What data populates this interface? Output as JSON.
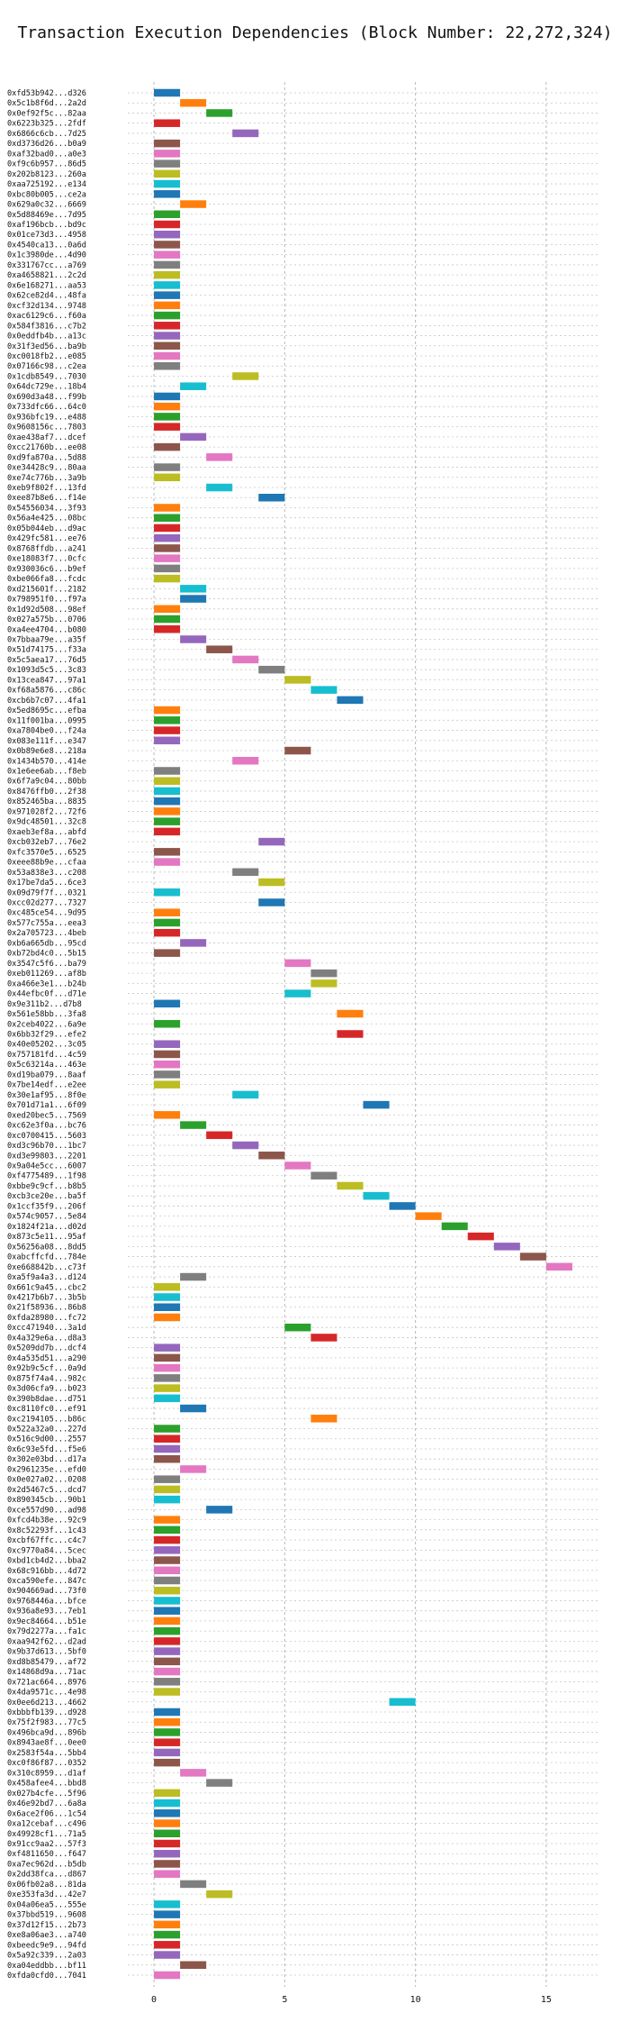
{
  "chart_data": {
    "type": "gantt",
    "title": "Transaction Execution Dependencies (Block Number: 22,272,324)",
    "xlabel": "",
    "ylabel": "",
    "xlim": [
      -1,
      17
    ],
    "x_ticks": [
      0,
      5,
      10,
      15
    ],
    "grid": true,
    "palette": [
      "#1f77b4",
      "#ff7f0e",
      "#2ca02c",
      "#d62728",
      "#9467bd",
      "#8c564b",
      "#e377c2",
      "#7f7f7f",
      "#bcbd22",
      "#17becf"
    ],
    "tasks": [
      {
        "label": "0xfd53b942...d326",
        "start": 0,
        "end": 1
      },
      {
        "label": "0x5c1b8f6d...2a2d",
        "start": 1,
        "end": 2
      },
      {
        "label": "0x0ef92f5c...82aa",
        "start": 2,
        "end": 3
      },
      {
        "label": "0x6223b325...2fdf",
        "start": 0,
        "end": 1
      },
      {
        "label": "0x6866c6cb...7d25",
        "start": 3,
        "end": 4
      },
      {
        "label": "0xd3736d26...b0a9",
        "start": 0,
        "end": 1
      },
      {
        "label": "0xaf32bad0...a0e3",
        "start": 0,
        "end": 1
      },
      {
        "label": "0xf9c6b957...86d5",
        "start": 0,
        "end": 1
      },
      {
        "label": "0x202b8123...260a",
        "start": 0,
        "end": 1
      },
      {
        "label": "0xaa725192...e134",
        "start": 0,
        "end": 1
      },
      {
        "label": "0xbc80b005...ce2a",
        "start": 0,
        "end": 1
      },
      {
        "label": "0x629a0c32...6669",
        "start": 1,
        "end": 2
      },
      {
        "label": "0x5d88469e...7d95",
        "start": 0,
        "end": 1
      },
      {
        "label": "0xaf196bcb...bd9c",
        "start": 0,
        "end": 1
      },
      {
        "label": "0x01ce73d3...4958",
        "start": 0,
        "end": 1
      },
      {
        "label": "0x4540ca13...0a6d",
        "start": 0,
        "end": 1
      },
      {
        "label": "0x1c3980de...4d90",
        "start": 0,
        "end": 1
      },
      {
        "label": "0x331767cc...a769",
        "start": 0,
        "end": 1
      },
      {
        "label": "0xa4658821...2c2d",
        "start": 0,
        "end": 1
      },
      {
        "label": "0x6e168271...aa53",
        "start": 0,
        "end": 1
      },
      {
        "label": "0x62ce82d4...48fa",
        "start": 0,
        "end": 1
      },
      {
        "label": "0xcf32d134...9748",
        "start": 0,
        "end": 1
      },
      {
        "label": "0xac6129c6...f60a",
        "start": 0,
        "end": 1
      },
      {
        "label": "0x584f3816...c7b2",
        "start": 0,
        "end": 1
      },
      {
        "label": "0x0eddfb4b...a13c",
        "start": 0,
        "end": 1
      },
      {
        "label": "0x31f3ed56...ba9b",
        "start": 0,
        "end": 1
      },
      {
        "label": "0xc0018fb2...e085",
        "start": 0,
        "end": 1
      },
      {
        "label": "0x07166c98...c2ea",
        "start": 0,
        "end": 1
      },
      {
        "label": "0x1cdb8549...7030",
        "start": 3,
        "end": 4
      },
      {
        "label": "0x64dc729e...18b4",
        "start": 1,
        "end": 2
      },
      {
        "label": "0x690d3a48...f99b",
        "start": 0,
        "end": 1
      },
      {
        "label": "0x733dfc66...64c0",
        "start": 0,
        "end": 1
      },
      {
        "label": "0x936bfc19...e488",
        "start": 0,
        "end": 1
      },
      {
        "label": "0x9608156c...7803",
        "start": 0,
        "end": 1
      },
      {
        "label": "0xae438af7...dcef",
        "start": 1,
        "end": 2
      },
      {
        "label": "0xcc21760b...ee08",
        "start": 0,
        "end": 1
      },
      {
        "label": "0xd9fa870a...5d88",
        "start": 2,
        "end": 3
      },
      {
        "label": "0xe34428c9...80aa",
        "start": 0,
        "end": 1
      },
      {
        "label": "0xe74c776b...3a9b",
        "start": 0,
        "end": 1
      },
      {
        "label": "0xeb9f802f...13fd",
        "start": 2,
        "end": 3
      },
      {
        "label": "0xee87b8e6...f14e",
        "start": 4,
        "end": 5
      },
      {
        "label": "0x54556034...3f93",
        "start": 0,
        "end": 1
      },
      {
        "label": "0x56a4e425...08bc",
        "start": 0,
        "end": 1
      },
      {
        "label": "0x05b044eb...d9ac",
        "start": 0,
        "end": 1
      },
      {
        "label": "0x429fc581...ee76",
        "start": 0,
        "end": 1
      },
      {
        "label": "0x8768ffdb...a241",
        "start": 0,
        "end": 1
      },
      {
        "label": "0xe18083f7...0cfc",
        "start": 0,
        "end": 1
      },
      {
        "label": "0x930036c6...b9ef",
        "start": 0,
        "end": 1
      },
      {
        "label": "0xbe066fa8...fcdc",
        "start": 0,
        "end": 1
      },
      {
        "label": "0xd215601f...2182",
        "start": 1,
        "end": 2
      },
      {
        "label": "0x798951f0...f97a",
        "start": 1,
        "end": 2
      },
      {
        "label": "0x1d92d508...98ef",
        "start": 0,
        "end": 1
      },
      {
        "label": "0x027a575b...0706",
        "start": 0,
        "end": 1
      },
      {
        "label": "0xa4ee4704...b080",
        "start": 0,
        "end": 1
      },
      {
        "label": "0x7bbaa79e...a35f",
        "start": 1,
        "end": 2
      },
      {
        "label": "0x51d74175...f33a",
        "start": 2,
        "end": 3
      },
      {
        "label": "0x5c5aea17...76d5",
        "start": 3,
        "end": 4
      },
      {
        "label": "0x1093d5c5...3c83",
        "start": 4,
        "end": 5
      },
      {
        "label": "0x13cea847...97a1",
        "start": 5,
        "end": 6
      },
      {
        "label": "0xf68a5876...c86c",
        "start": 6,
        "end": 7
      },
      {
        "label": "0xcb6b7c07...4fa1",
        "start": 7,
        "end": 8
      },
      {
        "label": "0x5ed8695c...efba",
        "start": 0,
        "end": 1
      },
      {
        "label": "0x11f001ba...0995",
        "start": 0,
        "end": 1
      },
      {
        "label": "0xa7804be0...f24a",
        "start": 0,
        "end": 1
      },
      {
        "label": "0x083e111f...e347",
        "start": 0,
        "end": 1
      },
      {
        "label": "0x0b89e6e8...218a",
        "start": 5,
        "end": 6
      },
      {
        "label": "0x1434b570...414e",
        "start": 3,
        "end": 4
      },
      {
        "label": "0x1e6ee6ab...f8eb",
        "start": 0,
        "end": 1
      },
      {
        "label": "0x6f7a9c04...80bb",
        "start": 0,
        "end": 1
      },
      {
        "label": "0x8476ffb0...2f38",
        "start": 0,
        "end": 1
      },
      {
        "label": "0x852465ba...8835",
        "start": 0,
        "end": 1
      },
      {
        "label": "0x971028f2...72f6",
        "start": 0,
        "end": 1
      },
      {
        "label": "0x9dc48501...32c8",
        "start": 0,
        "end": 1
      },
      {
        "label": "0xaeb3ef8a...abfd",
        "start": 0,
        "end": 1
      },
      {
        "label": "0xcb032eb7...76e2",
        "start": 4,
        "end": 5
      },
      {
        "label": "0xfc3570e5...6525",
        "start": 0,
        "end": 1
      },
      {
        "label": "0xeee88b9e...cfaa",
        "start": 0,
        "end": 1
      },
      {
        "label": "0x53a838e3...c208",
        "start": 3,
        "end": 4
      },
      {
        "label": "0x17be7da5...6ce3",
        "start": 4,
        "end": 5
      },
      {
        "label": "0x09d79f7f...0321",
        "start": 0,
        "end": 1
      },
      {
        "label": "0xcc02d277...7327",
        "start": 4,
        "end": 5
      },
      {
        "label": "0xc485ce54...9d95",
        "start": 0,
        "end": 1
      },
      {
        "label": "0x577c755a...eea3",
        "start": 0,
        "end": 1
      },
      {
        "label": "0x2a705723...4beb",
        "start": 0,
        "end": 1
      },
      {
        "label": "0xb6a665db...95cd",
        "start": 1,
        "end": 2
      },
      {
        "label": "0xb72bd4c0...5b15",
        "start": 0,
        "end": 1
      },
      {
        "label": "0x3547c5f6...ba79",
        "start": 5,
        "end": 6
      },
      {
        "label": "0xeb011269...af8b",
        "start": 6,
        "end": 7
      },
      {
        "label": "0xa466e3e1...b24b",
        "start": 6,
        "end": 7
      },
      {
        "label": "0x44efbc0f...d71e",
        "start": 5,
        "end": 6
      },
      {
        "label": "0x9e311b2...d7b8",
        "start": 0,
        "end": 1
      },
      {
        "label": "0x561e58bb...3fa8",
        "start": 7,
        "end": 8
      },
      {
        "label": "0x2ceb4022...6a9e",
        "start": 0,
        "end": 1
      },
      {
        "label": "0x6bb32f29...efe2",
        "start": 7,
        "end": 8
      },
      {
        "label": "0x40e05202...3c05",
        "start": 0,
        "end": 1
      },
      {
        "label": "0x757181fd...4c59",
        "start": 0,
        "end": 1
      },
      {
        "label": "0x5c63214a...463e",
        "start": 0,
        "end": 1
      },
      {
        "label": "0xd19ba079...8aaf",
        "start": 0,
        "end": 1
      },
      {
        "label": "0x7be14edf...e2ee",
        "start": 0,
        "end": 1
      },
      {
        "label": "0x30e1af95...8f0e",
        "start": 3,
        "end": 4
      },
      {
        "label": "0x701d71a1...6f09",
        "start": 8,
        "end": 9
      },
      {
        "label": "0xed20bec5...7569",
        "start": 0,
        "end": 1
      },
      {
        "label": "0xc62e3f0a...bc76",
        "start": 1,
        "end": 2
      },
      {
        "label": "0xc0700415...5603",
        "start": 2,
        "end": 3
      },
      {
        "label": "0xd3c96b70...1bc7",
        "start": 3,
        "end": 4
      },
      {
        "label": "0xd3e99803...2201",
        "start": 4,
        "end": 5
      },
      {
        "label": "0x9a04e5cc...6007",
        "start": 5,
        "end": 6
      },
      {
        "label": "0xf4775489...1f98",
        "start": 6,
        "end": 7
      },
      {
        "label": "0xbbe9c9cf...b8b5",
        "start": 7,
        "end": 8
      },
      {
        "label": "0xcb3ce20e...ba5f",
        "start": 8,
        "end": 9
      },
      {
        "label": "0x1ccf35f9...206f",
        "start": 9,
        "end": 10
      },
      {
        "label": "0x574c9057...5e84",
        "start": 10,
        "end": 11
      },
      {
        "label": "0x1824f21a...d02d",
        "start": 11,
        "end": 12
      },
      {
        "label": "0x873c5e11...95af",
        "start": 12,
        "end": 13
      },
      {
        "label": "0x56256a08...8dd5",
        "start": 13,
        "end": 14
      },
      {
        "label": "0xabcffcfd...784e",
        "start": 14,
        "end": 15
      },
      {
        "label": "0xe668842b...c73f",
        "start": 15,
        "end": 16
      },
      {
        "label": "0xa5f9a4a3...d124",
        "start": 1,
        "end": 2
      },
      {
        "label": "0x661c9a45...cbc2",
        "start": 0,
        "end": 1
      },
      {
        "label": "0x4217b6b7...3b5b",
        "start": 0,
        "end": 1
      },
      {
        "label": "0x21f58936...86b8",
        "start": 0,
        "end": 1
      },
      {
        "label": "0xfda28980...fc72",
        "start": 0,
        "end": 1
      },
      {
        "label": "0xcc471940...3a1d",
        "start": 5,
        "end": 6
      },
      {
        "label": "0x4a329e6a...d8a3",
        "start": 6,
        "end": 7
      },
      {
        "label": "0x5209dd7b...dcf4",
        "start": 0,
        "end": 1
      },
      {
        "label": "0x4a535d51...a290",
        "start": 0,
        "end": 1
      },
      {
        "label": "0x92b9c5cf...0a9d",
        "start": 0,
        "end": 1
      },
      {
        "label": "0x875f74a4...982c",
        "start": 0,
        "end": 1
      },
      {
        "label": "0x3d06cfa9...b023",
        "start": 0,
        "end": 1
      },
      {
        "label": "0x390b8dae...d751",
        "start": 0,
        "end": 1
      },
      {
        "label": "0xc8110fc0...ef91",
        "start": 1,
        "end": 2
      },
      {
        "label": "0xc2194105...b86c",
        "start": 6,
        "end": 7
      },
      {
        "label": "0x522a32a0...227d",
        "start": 0,
        "end": 1
      },
      {
        "label": "0x516c9d00...2557",
        "start": 0,
        "end": 1
      },
      {
        "label": "0x6c93e5fd...f5e6",
        "start": 0,
        "end": 1
      },
      {
        "label": "0x302e03bd...d17a",
        "start": 0,
        "end": 1
      },
      {
        "label": "0x2961235e...efd0",
        "start": 1,
        "end": 2
      },
      {
        "label": "0x0e027a02...0208",
        "start": 0,
        "end": 1
      },
      {
        "label": "0x2d5467c5...dcd7",
        "start": 0,
        "end": 1
      },
      {
        "label": "0x890345cb...90b1",
        "start": 0,
        "end": 1
      },
      {
        "label": "0xce557d90...ad98",
        "start": 2,
        "end": 3
      },
      {
        "label": "0xfcd4b38e...92c9",
        "start": 0,
        "end": 1
      },
      {
        "label": "0x8c52293f...1c43",
        "start": 0,
        "end": 1
      },
      {
        "label": "0xcbf67ffc...c4c7",
        "start": 0,
        "end": 1
      },
      {
        "label": "0xc9770a84...5cec",
        "start": 0,
        "end": 1
      },
      {
        "label": "0xbd1cb4d2...bba2",
        "start": 0,
        "end": 1
      },
      {
        "label": "0x68c916bb...4d72",
        "start": 0,
        "end": 1
      },
      {
        "label": "0xca590efe...847c",
        "start": 0,
        "end": 1
      },
      {
        "label": "0x904669ad...73f0",
        "start": 0,
        "end": 1
      },
      {
        "label": "0x9768446a...bfce",
        "start": 0,
        "end": 1
      },
      {
        "label": "0x936a8e93...7eb1",
        "start": 0,
        "end": 1
      },
      {
        "label": "0x9ec84664...b51e",
        "start": 0,
        "end": 1
      },
      {
        "label": "0x79d2277a...fa1c",
        "start": 0,
        "end": 1
      },
      {
        "label": "0xaa942f62...d2ad",
        "start": 0,
        "end": 1
      },
      {
        "label": "0x9b37d613...5bf0",
        "start": 0,
        "end": 1
      },
      {
        "label": "0xd8b85479...af72",
        "start": 0,
        "end": 1
      },
      {
        "label": "0x14868d9a...71ac",
        "start": 0,
        "end": 1
      },
      {
        "label": "0x721ac664...8976",
        "start": 0,
        "end": 1
      },
      {
        "label": "0x4da9571c...4e98",
        "start": 0,
        "end": 1
      },
      {
        "label": "0x0ee6d213...4662",
        "start": 9,
        "end": 10
      },
      {
        "label": "0xbbbfb139...d928",
        "start": 0,
        "end": 1
      },
      {
        "label": "0x75f2f983...77c5",
        "start": 0,
        "end": 1
      },
      {
        "label": "0x496bca9d...896b",
        "start": 0,
        "end": 1
      },
      {
        "label": "0x8943ae8f...0ee0",
        "start": 0,
        "end": 1
      },
      {
        "label": "0x2583f54a...5bb4",
        "start": 0,
        "end": 1
      },
      {
        "label": "0xc0f86f87...0352",
        "start": 0,
        "end": 1
      },
      {
        "label": "0x310c8959...d1af",
        "start": 1,
        "end": 2
      },
      {
        "label": "0x458afee4...bbd8",
        "start": 2,
        "end": 3
      },
      {
        "label": "0x027b4cfe...5f96",
        "start": 0,
        "end": 1
      },
      {
        "label": "0x46e92bd7...6a8a",
        "start": 0,
        "end": 1
      },
      {
        "label": "0x6ace2f06...1c54",
        "start": 0,
        "end": 1
      },
      {
        "label": "0xa12cebaf...c496",
        "start": 0,
        "end": 1
      },
      {
        "label": "0x49928cf1...71a5",
        "start": 0,
        "end": 1
      },
      {
        "label": "0x91cc9aa2...57f3",
        "start": 0,
        "end": 1
      },
      {
        "label": "0xf4811650...f647",
        "start": 0,
        "end": 1
      },
      {
        "label": "0xa7ec962d...b5db",
        "start": 0,
        "end": 1
      },
      {
        "label": "0x2dd38fca...d867",
        "start": 0,
        "end": 1
      },
      {
        "label": "0x06fb02a8...81da",
        "start": 1,
        "end": 2
      },
      {
        "label": "0xe353fa3d...42e7",
        "start": 2,
        "end": 3
      },
      {
        "label": "0x04a06ea5...555e",
        "start": 0,
        "end": 1
      },
      {
        "label": "0x37bbd519...9608",
        "start": 0,
        "end": 1
      },
      {
        "label": "0x37d12f15...2b73",
        "start": 0,
        "end": 1
      },
      {
        "label": "0xe8a06ae3...a740",
        "start": 0,
        "end": 1
      },
      {
        "label": "0xbeedc9e9...94fd",
        "start": 0,
        "end": 1
      },
      {
        "label": "0x5a92c339...2a03",
        "start": 0,
        "end": 1
      },
      {
        "label": "0xa04eddbb...bf11",
        "start": 1,
        "end": 2
      },
      {
        "label": "0xfda0cfd0...7041",
        "start": 0,
        "end": 1
      }
    ]
  }
}
